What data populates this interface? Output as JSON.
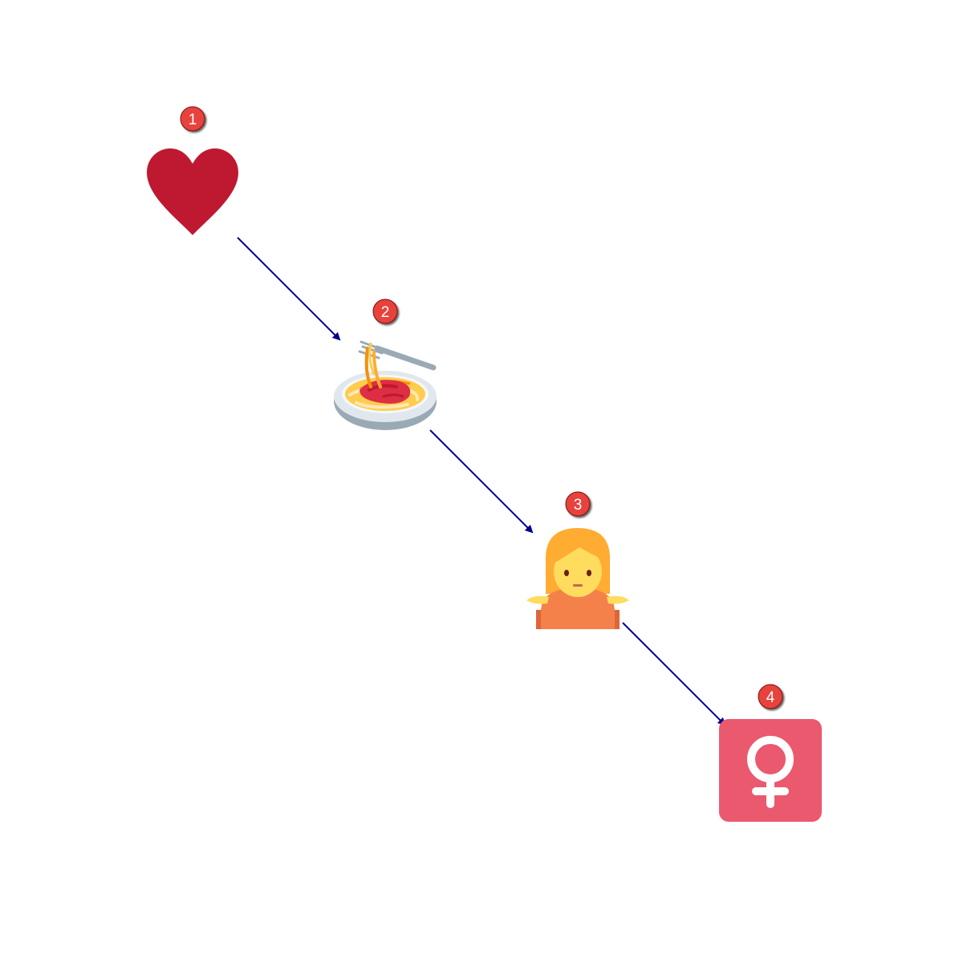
{
  "diagram": {
    "type": "emoji-sequence",
    "arrow_color": "#00008b",
    "badge_color": "#e8433e",
    "steps": [
      {
        "number": "1",
        "emoji": "red-heart",
        "meaning": "heart"
      },
      {
        "number": "2",
        "emoji": "spaghetti",
        "meaning": "spaghetti"
      },
      {
        "number": "3",
        "emoji": "person-shrugging",
        "meaning": "shrug"
      },
      {
        "number": "4",
        "emoji": "female-sign",
        "meaning": "female"
      }
    ],
    "colors": {
      "heart": "#be1931",
      "female_tile": "#ea596e",
      "hair": "#ffac33",
      "skin": "#ffdc5d",
      "shirt": "#f4814a"
    }
  }
}
